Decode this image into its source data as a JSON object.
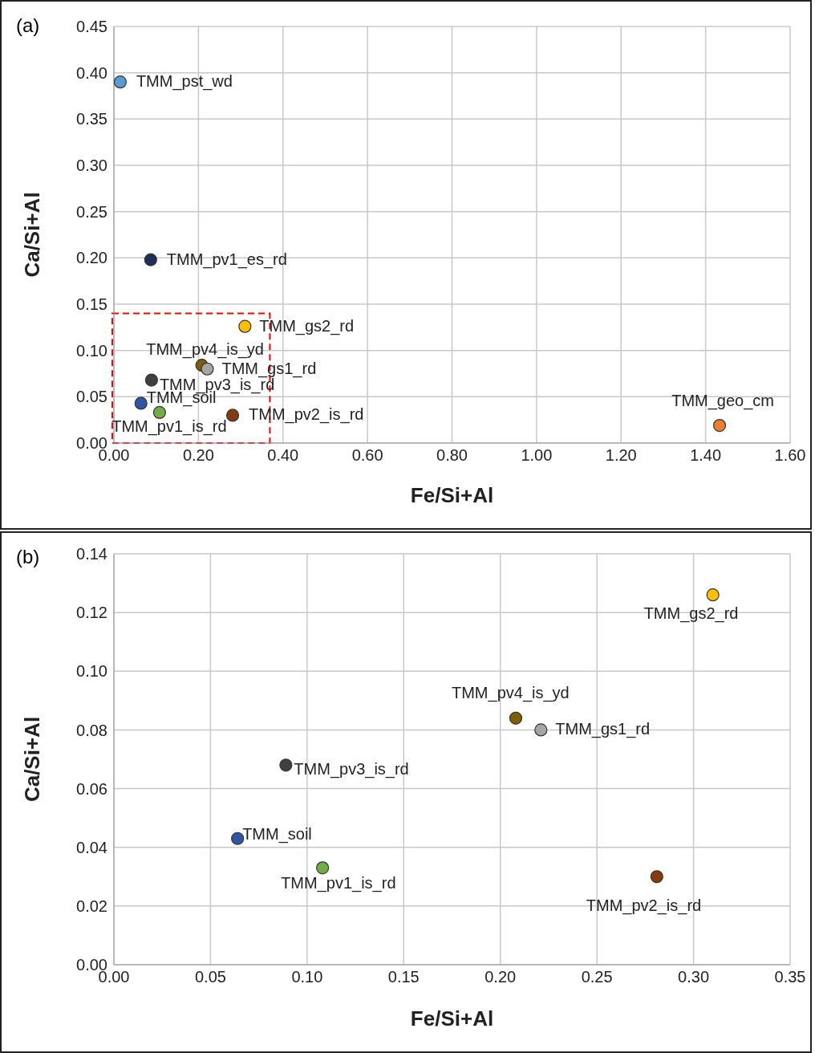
{
  "chart_data": [
    {
      "type": "scatter",
      "title": "(a)",
      "xlabel": "Fe/Si+Al",
      "ylabel": "Ca/Si+Al",
      "xlim": [
        0,
        1.6
      ],
      "ylim": [
        0,
        0.45
      ],
      "xticks": [
        {
          "value": 0,
          "label": "0.00"
        },
        {
          "value": 0.2,
          "label": "0.20"
        },
        {
          "value": 0.4,
          "label": "0.40"
        },
        {
          "value": 0.6,
          "label": "0.60"
        },
        {
          "value": 0.8,
          "label": "0.80"
        },
        {
          "value": 1.0,
          "label": "1.00"
        },
        {
          "value": 1.2,
          "label": "1.20"
        },
        {
          "value": 1.4,
          "label": "1.40"
        },
        {
          "value": 1.6,
          "label": "1.60"
        }
      ],
      "yticks": [
        {
          "value": 0,
          "label": "0.00"
        },
        {
          "value": 0.05,
          "label": "0.05"
        },
        {
          "value": 0.1,
          "label": "0.10"
        },
        {
          "value": 0.15,
          "label": "0.15"
        },
        {
          "value": 0.2,
          "label": "0.20"
        },
        {
          "value": 0.25,
          "label": "0.25"
        },
        {
          "value": 0.3,
          "label": "0.30"
        },
        {
          "value": 0.35,
          "label": "0.35"
        },
        {
          "value": 0.4,
          "label": "0.40"
        },
        {
          "value": 0.45,
          "label": "0.45"
        }
      ],
      "grid": true,
      "legend": false,
      "marker": "circle",
      "series": [
        {
          "name": "TMM_pst_wd",
          "color": "#5b9bd5",
          "x": [
            0.015
          ],
          "values": [
            0.39
          ]
        },
        {
          "name": "TMM_pv1_es_rd",
          "color": "#1f2d5a",
          "x": [
            0.087
          ],
          "values": [
            0.198
          ]
        },
        {
          "name": "TMM_gs2_rd",
          "color": "#ffc000",
          "x": [
            0.31
          ],
          "values": [
            0.126
          ]
        },
        {
          "name": "TMM_pv4_is_yd",
          "color": "#7f6000",
          "x": [
            0.208
          ],
          "values": [
            0.084
          ]
        },
        {
          "name": "TMM_gs1_rd",
          "color": "#a5a5a5",
          "x": [
            0.221
          ],
          "values": [
            0.08
          ]
        },
        {
          "name": "TMM_pv3_is_rd",
          "color": "#404040",
          "x": [
            0.089
          ],
          "values": [
            0.068
          ]
        },
        {
          "name": "TMM_soil",
          "color": "#2f55a4",
          "x": [
            0.064
          ],
          "values": [
            0.043
          ]
        },
        {
          "name": "TMM_pv1_is_rd",
          "color": "#70ad47",
          "x": [
            0.108
          ],
          "values": [
            0.033
          ]
        },
        {
          "name": "TMM_pv2_is_rd",
          "color": "#843c0c",
          "x": [
            0.281
          ],
          "values": [
            0.03
          ]
        },
        {
          "name": "TMM_geo_cm",
          "color": "#ed7d31",
          "x": [
            1.433
          ],
          "values": [
            0.019
          ]
        }
      ]
    },
    {
      "type": "scatter",
      "title": "(b)",
      "xlabel": "Fe/Si+Al",
      "ylabel": "Ca/Si+Al",
      "xlim": [
        0,
        0.35
      ],
      "ylim": [
        0,
        0.14
      ],
      "xticks": [
        {
          "value": 0,
          "label": "0.00"
        },
        {
          "value": 0.05,
          "label": "0.05"
        },
        {
          "value": 0.1,
          "label": "0.10"
        },
        {
          "value": 0.15,
          "label": "0.15"
        },
        {
          "value": 0.2,
          "label": "0.20"
        },
        {
          "value": 0.25,
          "label": "0.25"
        },
        {
          "value": 0.3,
          "label": "0.30"
        },
        {
          "value": 0.35,
          "label": "0.35"
        }
      ],
      "yticks": [
        {
          "value": 0,
          "label": "0.00"
        },
        {
          "value": 0.02,
          "label": "0.02"
        },
        {
          "value": 0.04,
          "label": "0.04"
        },
        {
          "value": 0.06,
          "label": "0.06"
        },
        {
          "value": 0.08,
          "label": "0.08"
        },
        {
          "value": 0.1,
          "label": "0.10"
        },
        {
          "value": 0.12,
          "label": "0.12"
        },
        {
          "value": 0.14,
          "label": "0.14"
        }
      ],
      "grid": true,
      "legend": false,
      "marker": "circle",
      "series": [
        {
          "name": "TMM_gs2_rd",
          "color": "#ffc000",
          "x": [
            0.31
          ],
          "values": [
            0.126
          ]
        },
        {
          "name": "TMM_pv4_is_yd",
          "color": "#7f6000",
          "x": [
            0.208
          ],
          "values": [
            0.084
          ]
        },
        {
          "name": "TMM_gs1_rd",
          "color": "#a5a5a5",
          "x": [
            0.221
          ],
          "values": [
            0.08
          ]
        },
        {
          "name": "TMM_pv3_is_rd",
          "color": "#404040",
          "x": [
            0.089
          ],
          "values": [
            0.068
          ]
        },
        {
          "name": "TMM_soil",
          "color": "#2f55a4",
          "x": [
            0.064
          ],
          "values": [
            0.043
          ]
        },
        {
          "name": "TMM_pv1_is_rd",
          "color": "#70ad47",
          "x": [
            0.108
          ],
          "values": [
            0.033
          ]
        },
        {
          "name": "TMM_pv2_is_rd",
          "color": "#843c0c",
          "x": [
            0.281
          ],
          "values": [
            0.03
          ]
        }
      ]
    }
  ]
}
